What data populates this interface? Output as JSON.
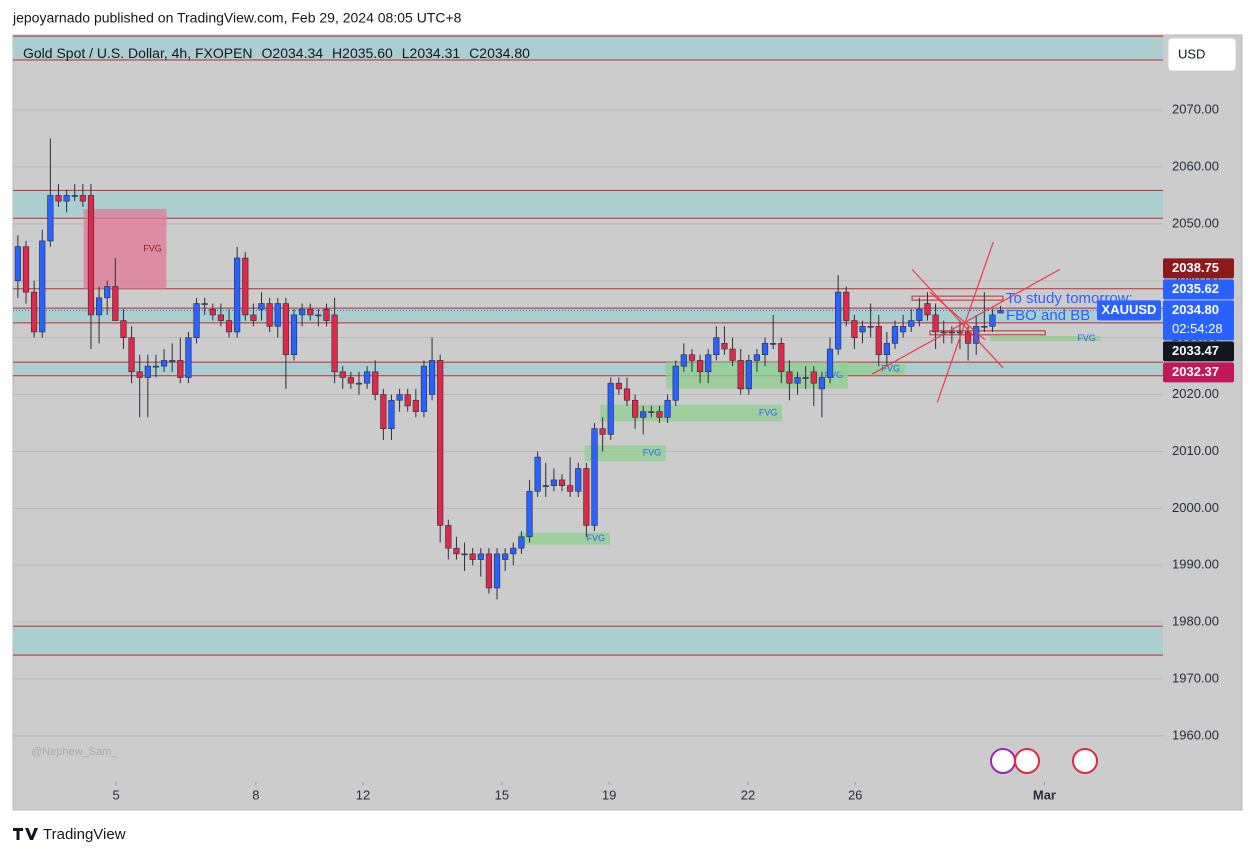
{
  "header": {
    "publisher": "jepoyarnado published on TradingView.com, Feb 29, 2024 08:05 UTC+8"
  },
  "chart_data": {
    "type": "candlestick",
    "title": "Gold Spot / U.S. Dollar, 4h, FXOPEN",
    "ohlc_text": [
      "O2034.34",
      "H2035.60",
      "L2034.31",
      "C2034.80"
    ],
    "currency": "USD",
    "up_color": "#2962ff",
    "down_color": "#e0294a",
    "candles": [
      [
        2040,
        2048,
        2037,
        2046
      ],
      [
        2046,
        2047,
        2036,
        2038
      ],
      [
        2038,
        2040,
        2030,
        2031
      ],
      [
        2031,
        2049,
        2030,
        2047
      ],
      [
        2047,
        2065,
        2046,
        2055
      ],
      [
        2055,
        2057,
        2053,
        2054
      ],
      [
        2054,
        2056,
        2052,
        2055
      ],
      [
        2055,
        2057,
        2054,
        2055
      ],
      [
        2055,
        2057,
        2053,
        2054
      ],
      [
        2055,
        2057,
        2028,
        2034
      ],
      [
        2034,
        2039,
        2029,
        2037
      ],
      [
        2037,
        2040,
        2034,
        2039
      ],
      [
        2039,
        2044,
        2033,
        2033
      ],
      [
        2033,
        2035,
        2028,
        2030
      ],
      [
        2030,
        2032,
        2022,
        2024
      ],
      [
        2024,
        2027,
        2016,
        2023
      ],
      [
        2023,
        2027,
        2016,
        2025
      ],
      [
        2025,
        2027,
        2023,
        2025
      ],
      [
        2025,
        2028,
        2024,
        2026
      ],
      [
        2026,
        2029,
        2024,
        2026
      ],
      [
        2026,
        2030,
        2022,
        2023
      ],
      [
        2023,
        2031,
        2022,
        2030
      ],
      [
        2030,
        2037,
        2029,
        2036
      ],
      [
        2036,
        2037,
        2034,
        2036
      ],
      [
        2035,
        2036,
        2033,
        2034
      ],
      [
        2034,
        2036,
        2032,
        2033
      ],
      [
        2033,
        2035,
        2030,
        2031
      ],
      [
        2031,
        2046,
        2030,
        2044
      ],
      [
        2044,
        2045,
        2033,
        2034
      ],
      [
        2034,
        2036,
        2032,
        2033
      ],
      [
        2035,
        2038,
        2033,
        2036
      ],
      [
        2036,
        2037,
        2031,
        2032
      ],
      [
        2032,
        2037,
        2030,
        2036
      ],
      [
        2036,
        2037,
        2021,
        2027
      ],
      [
        2027,
        2035,
        2026,
        2034
      ],
      [
        2034,
        2036,
        2032,
        2035
      ],
      [
        2035,
        2036,
        2033,
        2034
      ],
      [
        2034,
        2035,
        2032,
        2034
      ],
      [
        2035,
        2036,
        2032,
        2033
      ],
      [
        2034,
        2037,
        2022,
        2024
      ],
      [
        2024,
        2025,
        2021,
        2023
      ],
      [
        2023,
        2024,
        2021,
        2022
      ],
      [
        2022,
        2024,
        2020,
        2022
      ],
      [
        2022,
        2025,
        2021,
        2024
      ],
      [
        2024,
        2026,
        2019,
        2020
      ],
      [
        2020,
        2021,
        2012,
        2014
      ],
      [
        2014,
        2020,
        2012,
        2019
      ],
      [
        2019,
        2021,
        2017,
        2020
      ],
      [
        2020,
        2021,
        2017,
        2018
      ],
      [
        2019,
        2021,
        2016,
        2017
      ],
      [
        2017,
        2026,
        2016,
        2025
      ],
      [
        2020,
        2030,
        2019,
        2026
      ],
      [
        2026,
        2027,
        1994,
        1997
      ],
      [
        1997,
        1998,
        1991,
        1993
      ],
      [
        1993,
        1995,
        1991,
        1992
      ],
      [
        1992,
        1994,
        1989,
        1992
      ],
      [
        1992,
        1993,
        1990,
        1991
      ],
      [
        1991,
        1993,
        1988,
        1992
      ],
      [
        1992,
        1993,
        1985,
        1986
      ],
      [
        1986,
        1993,
        1984,
        1992
      ],
      [
        1991,
        1993,
        1989,
        1992
      ],
      [
        1992,
        1994,
        1990,
        1993
      ],
      [
        1993,
        1996,
        1992,
        1995
      ],
      [
        1995,
        2005,
        1994,
        2003
      ],
      [
        2003,
        2010,
        2002,
        2009
      ],
      [
        2004,
        2008,
        2002,
        2004
      ],
      [
        2004,
        2007,
        2003,
        2005
      ],
      [
        2005,
        2006,
        2003,
        2004
      ],
      [
        2004,
        2009,
        2002,
        2003
      ],
      [
        2003,
        2008,
        2002,
        2007
      ],
      [
        2007,
        2008,
        1995,
        1997
      ],
      [
        1997,
        2015,
        1996,
        2014
      ],
      [
        2014,
        2016,
        2010,
        2013
      ],
      [
        2013,
        2023,
        2012,
        2022
      ],
      [
        2022,
        2023,
        2020,
        2021
      ],
      [
        2021,
        2023,
        2018,
        2019
      ],
      [
        2019,
        2020,
        2014,
        2016
      ],
      [
        2016,
        2018,
        2013,
        2017
      ],
      [
        2017,
        2018,
        2016,
        2017
      ],
      [
        2017,
        2018,
        2015,
        2016
      ],
      [
        2016,
        2020,
        2015,
        2019
      ],
      [
        2019,
        2026,
        2018,
        2025
      ],
      [
        2025,
        2029,
        2024,
        2027
      ],
      [
        2027,
        2028,
        2024,
        2026
      ],
      [
        2026,
        2027,
        2022,
        2024
      ],
      [
        2024,
        2028,
        2022,
        2027
      ],
      [
        2027,
        2032,
        2026,
        2030
      ],
      [
        2029,
        2032,
        2027,
        2028
      ],
      [
        2028,
        2030,
        2025,
        2026
      ],
      [
        2026,
        2028,
        2020,
        2021
      ],
      [
        2021,
        2027,
        2020,
        2026
      ],
      [
        2026,
        2028,
        2024,
        2027
      ],
      [
        2027,
        2030,
        2025,
        2029
      ],
      [
        2029,
        2034,
        2028,
        2029
      ],
      [
        2029,
        2030,
        2022,
        2024
      ],
      [
        2024,
        2026,
        2019,
        2022
      ],
      [
        2022,
        2024,
        2020,
        2023
      ],
      [
        2023,
        2025,
        2021,
        2023
      ],
      [
        2024,
        2025,
        2018,
        2022
      ],
      [
        2021,
        2024,
        2016,
        2023
      ],
      [
        2023,
        2030,
        2022,
        2028
      ],
      [
        2028,
        2041,
        2027,
        2038
      ],
      [
        2038,
        2039,
        2032,
        2033
      ],
      [
        2033,
        2034,
        2028,
        2030
      ],
      [
        2031,
        2033,
        2029,
        2032
      ],
      [
        2032,
        2036,
        2030,
        2032
      ],
      [
        2032,
        2034,
        2025,
        2027
      ],
      [
        2027,
        2031,
        2025,
        2029
      ],
      [
        2029,
        2033,
        2028,
        2032
      ],
      [
        2031,
        2034,
        2030,
        2032
      ],
      [
        2032,
        2035,
        2031,
        2033
      ],
      [
        2033,
        2037,
        2032,
        2035
      ],
      [
        2036,
        2038,
        2033,
        2034
      ],
      [
        2034,
        2036,
        2028,
        2031
      ],
      [
        2031,
        2033,
        2029,
        2031
      ],
      [
        2031,
        2032,
        2029,
        2031
      ],
      [
        2031,
        2033,
        2028,
        2031
      ],
      [
        2031,
        2032,
        2026,
        2029
      ],
      [
        2029,
        2034,
        2027,
        2032
      ],
      [
        2032,
        2038,
        2031,
        2032
      ],
      [
        2032,
        2035,
        2031,
        2034
      ],
      [
        2034.34,
        2035.6,
        2034.31,
        2034.8
      ]
    ],
    "xlim": [
      -0.6,
      141
    ],
    "xticks": [
      {
        "value": 12.1,
        "label": "5"
      },
      {
        "value": 29.3,
        "label": "8"
      },
      {
        "value": 42.5,
        "label": "12"
      },
      {
        "value": 59.6,
        "label": "15"
      },
      {
        "value": 72.8,
        "label": "19"
      },
      {
        "value": 89.9,
        "label": "22"
      },
      {
        "value": 103.1,
        "label": "26"
      },
      {
        "value": 126.4,
        "label": "Mar"
      }
    ],
    "ylim": [
      1951.9,
      2083.2
    ],
    "yticks": [
      {
        "value": 1960,
        "label": "1960.00"
      },
      {
        "value": 1970,
        "label": "1970.00"
      },
      {
        "value": 1980,
        "label": "1980.00"
      },
      {
        "value": 1990,
        "label": "1990.00"
      },
      {
        "value": 2000,
        "label": "2000.00"
      },
      {
        "value": 2010,
        "label": "2010.00"
      },
      {
        "value": 2020,
        "label": "2020.00"
      },
      {
        "value": 2030,
        "label": "2030.00"
      },
      {
        "value": 2040,
        "label": "2040.00"
      },
      {
        "value": 2050,
        "label": "2050.00"
      },
      {
        "value": 2060,
        "label": "2060.00"
      },
      {
        "value": 2070,
        "label": "2070.00"
      }
    ],
    "grid": true,
    "zone_color": "#a7cfd2",
    "level_color": "#c62828",
    "zones": [
      {
        "top": 2083,
        "bottom": 2078.8
      },
      {
        "top": 2055.9,
        "bottom": 2051.0
      },
      {
        "top": 2035.2,
        "bottom": 2032.6
      },
      {
        "top": 2025.7,
        "bottom": 2023.3
      },
      {
        "top": 1979.3,
        "bottom": 1974.2
      }
    ],
    "levels": [
      2038.6
    ],
    "fvgs": [
      {
        "x": [
          8.1,
          18.3
        ],
        "y": [
          2052.6,
          2038.6
        ],
        "color": "#e07a95",
        "label": "FVG"
      },
      {
        "x": [
          79.8,
          102.2
        ],
        "y": [
          2025.7,
          2021.0
        ],
        "color": "#8fcf8f",
        "label": "FVG"
      },
      {
        "x": [
          71.7,
          94.1
        ],
        "y": [
          2018.2,
          2015.3
        ],
        "color": "#8fcf8f",
        "label": "FVG"
      },
      {
        "x": [
          69.8,
          79.8
        ],
        "y": [
          2011.1,
          2008.3
        ],
        "color": "#8fcf8f",
        "label": "FVG"
      },
      {
        "x": [
          61.6,
          72.9
        ],
        "y": [
          1995.7,
          1993.6
        ],
        "color": "#8fcf8f",
        "label": "FVG"
      },
      {
        "x": [
          101.2,
          109.2
        ],
        "y": [
          2025.5,
          2023.4
        ],
        "color": "#8fcf8f",
        "label": "FVG"
      },
      {
        "x": [
          119.7,
          133.3
        ],
        "y": [
          2030.3,
          2029.4
        ],
        "color": "#8fcf8f",
        "label": "FVG"
      }
    ],
    "boxes": [
      {
        "x": [
          110.1,
          121.3
        ],
        "y": [
          2037.3,
          2036.6
        ]
      },
      {
        "x": [
          112.3,
          126.5
        ],
        "y": [
          2031.2,
          2030.5
        ]
      }
    ],
    "trendlines": [
      [
        105.2,
        2023.6,
        128.3,
        2042.0
      ],
      [
        113.2,
        2018.6,
        120.1,
        2046.8
      ],
      [
        110.1,
        2042.0,
        121.3,
        2024.7
      ],
      [
        112.3,
        2038.0,
        119.1,
        2029.6
      ]
    ],
    "price_labels": [
      {
        "value": 2038.75,
        "color": "#8b1a1a"
      },
      {
        "value": 2035.62,
        "color": "#2962ff"
      },
      {
        "value": {
          "value": 2034.8,
          "label": "2034.80"
        },
        "color": "#2962ff"
      },
      {
        "value": 2033.47,
        "color": "#131722"
      },
      {
        "value": 2032.37,
        "color": "#c2185b"
      }
    ],
    "current_index": 2,
    "symbol": "XAUUSD",
    "countdown": "02:54:28",
    "note": [
      "To study tomorrow:",
      "FBO and BB"
    ],
    "watermark": "@Nephew_Sam_",
    "brand": "TradingView"
  }
}
